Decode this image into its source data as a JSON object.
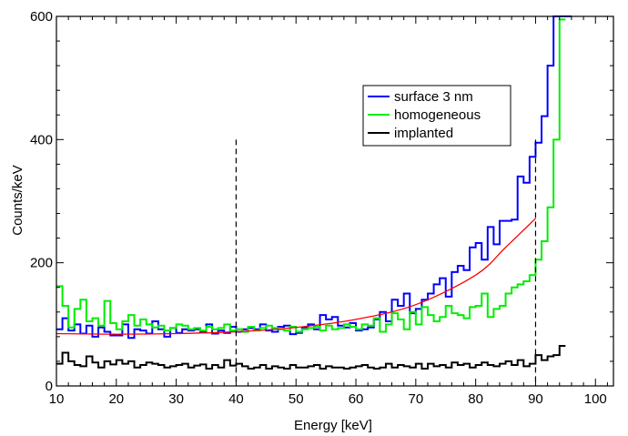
{
  "chart_data": {
    "type": "line",
    "title": "",
    "xlabel": "Energy [keV]",
    "ylabel": "Counts/keV",
    "xlim": [
      10,
      103
    ],
    "ylim": [
      0,
      600
    ],
    "x_ticks": [
      10,
      20,
      30,
      40,
      50,
      60,
      70,
      80,
      90,
      100
    ],
    "y_ticks": [
      0,
      200,
      400,
      600
    ],
    "grid": false,
    "legend_position": "upper-right-center",
    "legend": [
      "surface 3 nm",
      "homogeneous",
      "implanted"
    ],
    "vertical_markers": [
      {
        "x": 40,
        "y_top": 400,
        "style": "dashed"
      },
      {
        "x": 90,
        "y_top": 400,
        "style": "dashed"
      }
    ],
    "series": [
      {
        "name": "surface 3 nm",
        "color": "#0000ff",
        "style": "step",
        "bin_start": 10,
        "bin_width": 1,
        "values": [
          92,
          110,
          90,
          100,
          85,
          98,
          80,
          95,
          88,
          82,
          82,
          100,
          78,
          92,
          90,
          85,
          105,
          92,
          80,
          94,
          86,
          92,
          90,
          92,
          88,
          100,
          85,
          90,
          86,
          96,
          88,
          92,
          94,
          92,
          100,
          90,
          88,
          96,
          98,
          84,
          86,
          95,
          100,
          92,
          115,
          108,
          112,
          98,
          95,
          102,
          90,
          92,
          95,
          108,
          120,
          105,
          140,
          130,
          150,
          118,
          125,
          140,
          150,
          165,
          175,
          145,
          185,
          195,
          188,
          225,
          232,
          205,
          258,
          230,
          268,
          268,
          270,
          340,
          330,
          372,
          395,
          438,
          520,
          600,
          640,
          640
        ]
      },
      {
        "name": "homogeneous",
        "color": "#00ee00",
        "style": "step",
        "bin_start": 10,
        "bin_width": 1,
        "values": [
          162,
          130,
          95,
          125,
          140,
          105,
          110,
          98,
          138,
          102,
          92,
          105,
          115,
          98,
          108,
          100,
          95,
          98,
          90,
          94,
          100,
          98,
          92,
          94,
          90,
          96,
          92,
          94,
          100,
          90,
          92,
          88,
          96,
          90,
          94,
          98,
          94,
          92,
          90,
          96,
          88,
          92,
          94,
          96,
          90,
          98,
          92,
          94,
          100,
          96,
          92,
          100,
          98,
          110,
          88,
          100,
          118,
          108,
          92,
          120,
          100,
          128,
          115,
          105,
          112,
          130,
          118,
          115,
          110,
          128,
          130,
          150,
          112,
          125,
          130,
          150,
          160,
          165,
          170,
          180,
          205,
          235,
          290,
          400,
          595
        ]
      },
      {
        "name": "implanted",
        "color": "#000000",
        "style": "step",
        "bin_start": 10,
        "bin_width": 1,
        "values": [
          36,
          54,
          40,
          34,
          32,
          48,
          38,
          30,
          40,
          35,
          42,
          36,
          40,
          30,
          34,
          38,
          36,
          34,
          30,
          32,
          34,
          36,
          30,
          33,
          35,
          28,
          34,
          30,
          42,
          33,
          36,
          32,
          28,
          30,
          34,
          28,
          32,
          30,
          28,
          34,
          30,
          30,
          32,
          34,
          28,
          32,
          30,
          30,
          28,
          30,
          32,
          34,
          30,
          28,
          30,
          36,
          30,
          34,
          32,
          30,
          36,
          28,
          36,
          32,
          34,
          30,
          38,
          34,
          36,
          30,
          34,
          38,
          34,
          32,
          36,
          40,
          34,
          42,
          32,
          36,
          50,
          42,
          48,
          50,
          65
        ]
      },
      {
        "name": "",
        "color": "#ff0000",
        "style": "smooth",
        "x": [
          10,
          20,
          30,
          40,
          50,
          60,
          70,
          80,
          85,
          90
        ],
        "values": [
          85,
          84,
          85,
          88,
          95,
          108,
          132,
          180,
          225,
          272
        ]
      }
    ]
  }
}
